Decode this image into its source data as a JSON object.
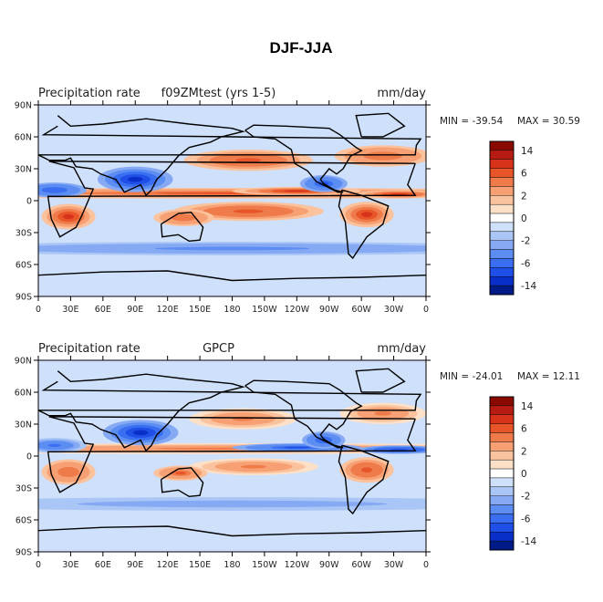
{
  "figure_title": "DJF-JJA",
  "chart_data": [
    {
      "type": "heatmap",
      "title_left": "Precipitation rate",
      "title_center": "f09ZMtest (yrs 1-5)",
      "title_right": "mm/day",
      "min_label": "MIN = -39.54",
      "max_label": "MAX = 30.59",
      "x_ticks": [
        "0",
        "30E",
        "60E",
        "90E",
        "120E",
        "150E",
        "180",
        "150W",
        "120W",
        "90W",
        "60W",
        "30W",
        "0"
      ],
      "y_ticks": [
        "90N",
        "60N",
        "30N",
        "0",
        "30S",
        "60S",
        "90S"
      ],
      "contour_levels": [
        -14,
        -10,
        -8,
        -6,
        -4,
        -2,
        -1,
        -0.5,
        0,
        0.5,
        1,
        2,
        4,
        6,
        8,
        10,
        14
      ],
      "colorbar_labels": [
        "14",
        "6",
        "2",
        "0",
        "-2",
        "-6",
        "-14"
      ],
      "fields": [
        {
          "name": "itcz",
          "lon": 180,
          "lat": 7,
          "width_lon": 360,
          "width_lat": 5,
          "value": 8
        },
        {
          "name": "east-pacific-itcz",
          "lon": 240,
          "lat": 9,
          "width_lon": 60,
          "width_lat": 4,
          "value": 10
        },
        {
          "name": "atlantic-itcz",
          "lon": 335,
          "lat": 6,
          "width_lon": 40,
          "width_lat": 4,
          "value": 10
        },
        {
          "name": "south-pacific",
          "lon": 195,
          "lat": -10,
          "width_lon": 70,
          "width_lat": 9,
          "value": 9
        },
        {
          "name": "south-america",
          "lon": 305,
          "lat": -13,
          "width_lon": 25,
          "width_lat": 12,
          "value": 10
        },
        {
          "name": "south-africa",
          "lon": 28,
          "lat": -15,
          "width_lon": 25,
          "width_lat": 12,
          "value": 10
        },
        {
          "name": "australia",
          "lon": 135,
          "lat": -16,
          "width_lon": 28,
          "width_lat": 8,
          "value": 7
        },
        {
          "name": "north-pacific-storm",
          "lon": 195,
          "lat": 38,
          "width_lon": 60,
          "width_lat": 10,
          "value": 9
        },
        {
          "name": "north-atlantic-storm",
          "lon": 320,
          "lat": 42,
          "width_lon": 45,
          "width_lat": 10,
          "value": 7
        },
        {
          "name": "asian-monsoon",
          "lon": 90,
          "lat": 20,
          "width_lon": 35,
          "width_lat": 12,
          "value": -12
        },
        {
          "name": "north-africa",
          "lon": 15,
          "lat": 10,
          "width_lon": 30,
          "width_lat": 7,
          "value": -7
        },
        {
          "name": "central-america",
          "lon": 265,
          "lat": 16,
          "width_lon": 22,
          "width_lat": 8,
          "value": -8
        },
        {
          "name": "southern-ocean",
          "lon": 180,
          "lat": -45,
          "width_lon": 360,
          "width_lat": 8,
          "value": -3
        }
      ]
    },
    {
      "type": "heatmap",
      "title_left": "Precipitation rate",
      "title_center": "GPCP",
      "title_right": "mm/day",
      "min_label": "MIN = -24.01",
      "max_label": "MAX = 12.11",
      "x_ticks": [
        "0",
        "30E",
        "60E",
        "90E",
        "120E",
        "150E",
        "180",
        "150W",
        "120W",
        "90W",
        "60W",
        "30W",
        "0"
      ],
      "y_ticks": [
        "90N",
        "60N",
        "30N",
        "0",
        "30S",
        "60S",
        "90S"
      ],
      "contour_levels": [
        -14,
        -10,
        -8,
        -6,
        -4,
        -2,
        -1,
        -0.5,
        0,
        0.5,
        1,
        2,
        4,
        6,
        8,
        10,
        14
      ],
      "colorbar_labels": [
        "14",
        "6",
        "2",
        "0",
        "-2",
        "-6",
        "-14"
      ],
      "fields": [
        {
          "name": "itcz",
          "lon": 180,
          "lat": 7,
          "width_lon": 360,
          "width_lat": 5,
          "value": 6
        },
        {
          "name": "east-pacific-itcz",
          "lon": 240,
          "lat": 8,
          "width_lon": 60,
          "width_lat": 4,
          "value": -8
        },
        {
          "name": "atlantic-itcz",
          "lon": 335,
          "lat": 6,
          "width_lon": 40,
          "width_lat": 4,
          "value": -9
        },
        {
          "name": "south-pacific",
          "lon": 200,
          "lat": -10,
          "width_lon": 60,
          "width_lat": 8,
          "value": 5
        },
        {
          "name": "south-america",
          "lon": 305,
          "lat": -13,
          "width_lon": 25,
          "width_lat": 12,
          "value": 9
        },
        {
          "name": "south-africa",
          "lon": 28,
          "lat": -15,
          "width_lon": 25,
          "width_lat": 12,
          "value": 7
        },
        {
          "name": "australia",
          "lon": 132,
          "lat": -16,
          "width_lon": 25,
          "width_lat": 7,
          "value": 8
        },
        {
          "name": "north-pacific-storm",
          "lon": 190,
          "lat": 35,
          "width_lon": 50,
          "width_lat": 10,
          "value": 6
        },
        {
          "name": "north-atlantic-storm",
          "lon": 320,
          "lat": 40,
          "width_lon": 40,
          "width_lat": 10,
          "value": 5
        },
        {
          "name": "asian-monsoon",
          "lon": 95,
          "lat": 22,
          "width_lon": 35,
          "width_lat": 12,
          "value": -10
        },
        {
          "name": "north-africa",
          "lon": 15,
          "lat": 10,
          "width_lon": 30,
          "width_lat": 7,
          "value": -6
        },
        {
          "name": "central-america",
          "lon": 265,
          "lat": 15,
          "width_lon": 20,
          "width_lat": 8,
          "value": -7
        },
        {
          "name": "southern-ocean",
          "lon": 180,
          "lat": -45,
          "width_lon": 360,
          "width_lat": 8,
          "value": -2
        }
      ]
    }
  ],
  "colors": {
    "palette": [
      "#001a88",
      "#0a2fc8",
      "#1f4fe6",
      "#3a6ef0",
      "#5b8df2",
      "#86a9f3",
      "#aac6f6",
      "#cfe0fa",
      "#ffffff",
      "#fde0c8",
      "#fbc29e",
      "#f7a074",
      "#ef7a4a",
      "#e75528",
      "#d6331a",
      "#b71c12",
      "#8a0a00"
    ],
    "land": "#000000"
  }
}
